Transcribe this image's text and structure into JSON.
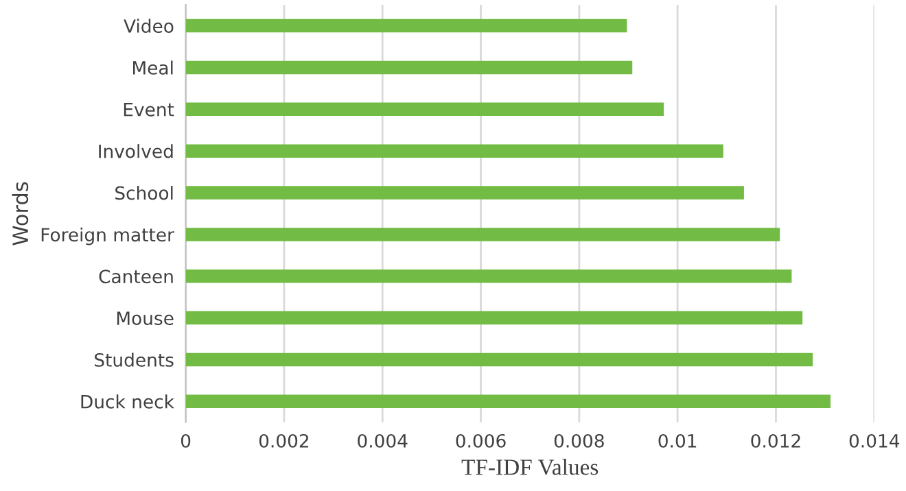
{
  "chart_data": {
    "type": "bar",
    "orientation": "horizontal",
    "xlabel": "TF-IDF Values",
    "ylabel": "Words",
    "categories": [
      "Video",
      "Meal",
      "Event",
      "Involved",
      "School",
      "Foreign matter",
      "Canteen",
      "Mouse",
      "Students",
      "Duck neck"
    ],
    "values": [
      0.00897,
      0.00908,
      0.00972,
      0.01093,
      0.01135,
      0.01208,
      0.01232,
      0.01254,
      0.01275,
      0.01311
    ],
    "color": "#72bb44",
    "xlim": [
      0,
      0.014
    ],
    "xticks": [
      0,
      0.002,
      0.004,
      0.006,
      0.008,
      0.01,
      0.012,
      0.014
    ],
    "grid": "x",
    "legend": false
  }
}
